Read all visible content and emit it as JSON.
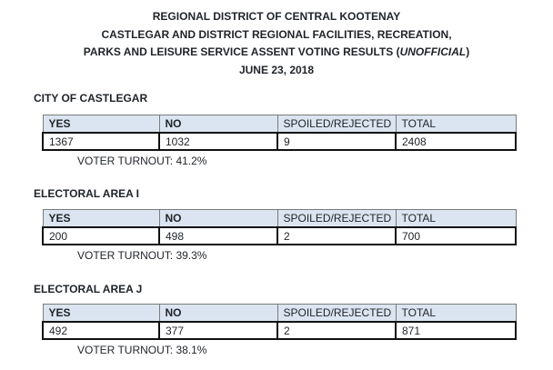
{
  "header": {
    "line1": "REGIONAL DISTRICT OF CENTRAL KOOTENAY",
    "line2": "CASTLEGAR AND DISTRICT REGIONAL FACILITIES, RECREATION,",
    "line3_prefix": "PARKS AND LEISURE SERVICE ASSENT VOTING RESULTS (",
    "line3_italic": "UNOFFICIAL",
    "line3_suffix": ")",
    "line4": "JUNE 23, 2018"
  },
  "columns": {
    "yes": "YES",
    "no": "NO",
    "spoiled": "SPOILED/REJECTED",
    "total": "TOTAL"
  },
  "sections": [
    {
      "title": "CITY OF CASTLEGAR",
      "yes": "1367",
      "no": "1032",
      "spoiled": "9",
      "total": "2408",
      "turnout": "VOTER TURNOUT: 41.2%"
    },
    {
      "title": "ELECTORAL AREA I",
      "yes": "200",
      "no": "498",
      "spoiled": "2",
      "total": "700",
      "turnout": "VOTER TURNOUT: 39.3%"
    },
    {
      "title": "ELECTORAL AREA J",
      "yes": "492",
      "no": "377",
      "spoiled": "2",
      "total": "871",
      "turnout": "VOTER TURNOUT: 38.1%"
    }
  ]
}
